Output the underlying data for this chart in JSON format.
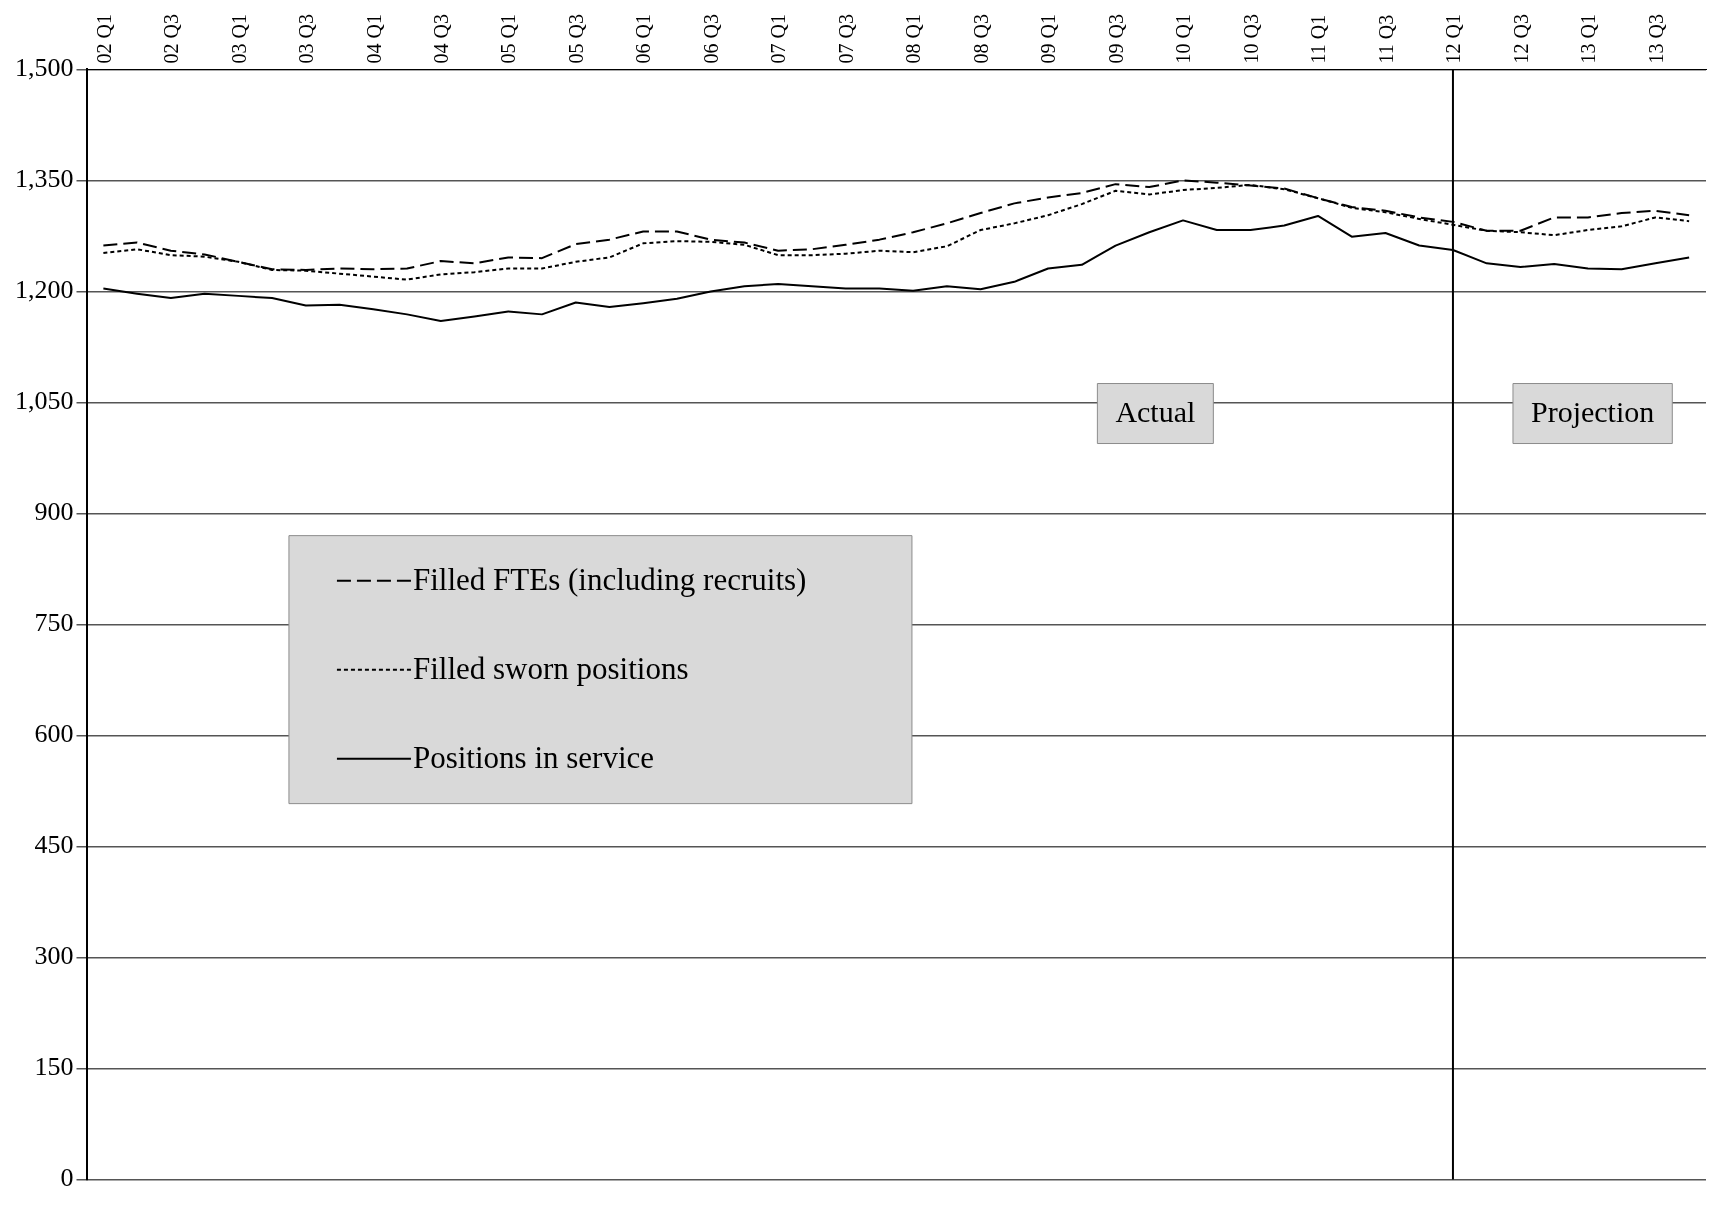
{
  "chart_data": {
    "type": "line",
    "categories": [
      "02 Q1",
      null,
      "02 Q3",
      null,
      "03 Q1",
      null,
      "03 Q3",
      null,
      "04 Q1",
      null,
      "04 Q3",
      null,
      "05 Q1",
      null,
      "05 Q3",
      null,
      "06 Q1",
      null,
      "06 Q3",
      null,
      "07 Q1",
      null,
      "07 Q3",
      null,
      "08 Q1",
      null,
      "08 Q3",
      null,
      "09 Q1",
      null,
      "09 Q3",
      null,
      "10 Q1",
      null,
      "10 Q3",
      null,
      "11 Q1",
      null,
      "11 Q3",
      null,
      "12 Q1",
      null,
      "12 Q3",
      null,
      "13 Q1",
      null,
      "13 Q3",
      null
    ],
    "series": [
      {
        "name": "Filled FTEs (including recruits)",
        "color": "#000000",
        "line_style": "dashed",
        "values": [
          1262,
          1266,
          1255,
          1250,
          1240,
          1230,
          1229,
          1231,
          1230,
          1231,
          1241,
          1238,
          1246,
          1245,
          1264,
          1270,
          1281,
          1281,
          1270,
          1266,
          1255,
          1257,
          1263,
          1270,
          1280,
          1292,
          1306,
          1319,
          1327,
          1333,
          1345,
          1341,
          1350,
          1347,
          1343,
          1339,
          1326,
          1314,
          1309,
          1300,
          1294,
          1282,
          1282,
          1300,
          1300,
          1306,
          1309,
          1303
        ]
      },
      {
        "name": "Filled sworn positions",
        "color": "#000000",
        "line_style": "dotted",
        "values": [
          1252,
          1257,
          1249,
          1247,
          1240,
          1229,
          1228,
          1224,
          1220,
          1216,
          1223,
          1226,
          1231,
          1231,
          1240,
          1246,
          1265,
          1268,
          1267,
          1263,
          1249,
          1249,
          1251,
          1255,
          1253,
          1261,
          1283,
          1292,
          1303,
          1318,
          1336,
          1331,
          1337,
          1340,
          1344,
          1338,
          1326,
          1313,
          1307,
          1298,
          1290,
          1282,
          1280,
          1276,
          1283,
          1288,
          1300,
          1295
        ]
      },
      {
        "name": "Positions in service",
        "color": "#000000",
        "line_style": "solid",
        "values": [
          1204,
          1197,
          1191,
          1197,
          1194,
          1191,
          1181,
          1182,
          1176,
          1169,
          1160,
          1166,
          1173,
          1169,
          1185,
          1179,
          1184,
          1190,
          1200,
          1207,
          1210,
          1207,
          1204,
          1204,
          1201,
          1207,
          1203,
          1213,
          1231,
          1236,
          1262,
          1280,
          1296,
          1283,
          1283,
          1289,
          1302,
          1274,
          1279,
          1262,
          1256,
          1238,
          1233,
          1237,
          1231,
          1230,
          1238,
          1246
        ]
      }
    ],
    "ylim": [
      0,
      1500
    ],
    "yticks": [
      0,
      150,
      300,
      450,
      600,
      750,
      900,
      {
        "value": 1050,
        "label": "1,050"
      },
      {
        "value": 1200,
        "label": "1,200"
      },
      {
        "value": 1350,
        "label": "1,350"
      },
      {
        "value": 1500,
        "label": "1,500"
      }
    ],
    "grid": "y",
    "legend": "left",
    "marker": "none",
    "ref_lines": [
      {
        "axis": "x",
        "value": "12 Q1",
        "color": "#000000"
      }
    ],
    "annotations": [
      "Actual",
      "Projection"
    ]
  }
}
